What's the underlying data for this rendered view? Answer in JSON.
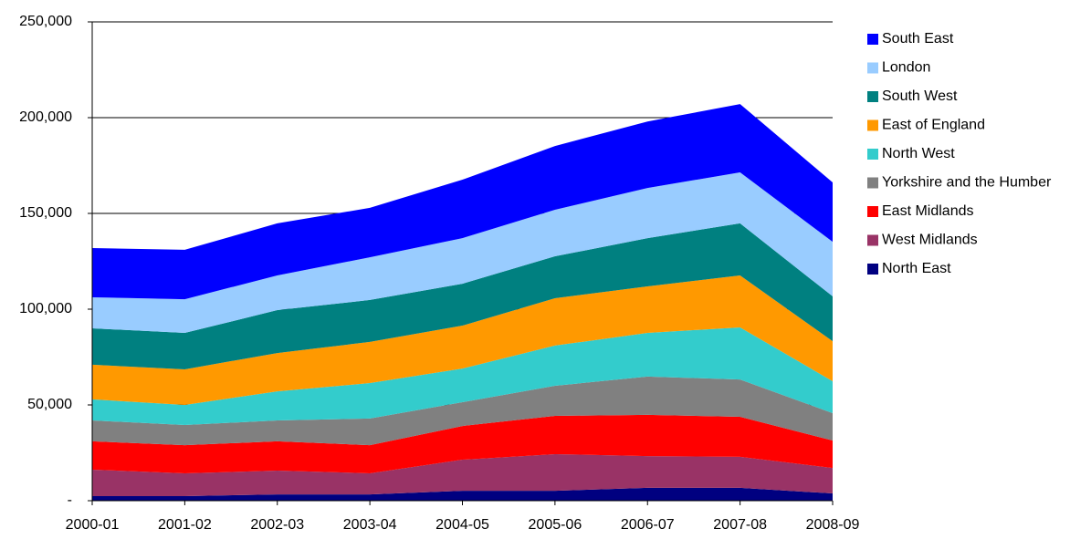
{
  "chart_data": {
    "type": "stacked-area",
    "categories": [
      "2000-01",
      "2001-02",
      "2002-03",
      "2003-04",
      "2004-05",
      "2005-06",
      "2006-07",
      "2007-08",
      "2008-09"
    ],
    "series": [
      {
        "name": "North East",
        "color": "#000080",
        "values": [
          2400,
          2400,
          3300,
          3300,
          5200,
          5200,
          6700,
          6700,
          3800
        ]
      },
      {
        "name": "West Midlands",
        "color": "#993366",
        "values": [
          13800,
          11900,
          12400,
          11000,
          16200,
          19100,
          16600,
          16200,
          13300
        ]
      },
      {
        "name": "East Midlands",
        "color": "#ff0000",
        "values": [
          14800,
          14700,
          15300,
          14700,
          17600,
          20000,
          21500,
          20900,
          14300
        ]
      },
      {
        "name": "Yorkshire and the Humber",
        "color": "#808080",
        "values": [
          10900,
          10500,
          10900,
          13900,
          12400,
          15700,
          20000,
          19500,
          14300
        ]
      },
      {
        "name": "North West",
        "color": "#33cccc",
        "values": [
          11000,
          10500,
          15200,
          18500,
          17600,
          21000,
          22800,
          27200,
          16700
        ]
      },
      {
        "name": "East of England",
        "color": "#ff9900",
        "values": [
          18100,
          18600,
          20000,
          21500,
          22400,
          24700,
          24300,
          27100,
          20900
        ]
      },
      {
        "name": "South West",
        "color": "#008080",
        "values": [
          19000,
          19000,
          22400,
          21900,
          21900,
          21900,
          25200,
          27200,
          23400
        ]
      },
      {
        "name": "London",
        "color": "#99ccff",
        "values": [
          16200,
          17600,
          18100,
          22300,
          23800,
          24300,
          26200,
          26600,
          28500
        ]
      },
      {
        "name": "South East",
        "color": "#0000ff",
        "values": [
          25700,
          25800,
          27200,
          25800,
          30500,
          33300,
          34700,
          35700,
          31000
        ]
      }
    ],
    "ylim": [
      0,
      250000
    ],
    "yticks": [
      {
        "value": 0,
        "label": "-"
      },
      {
        "value": 50000,
        "label": "50,000"
      },
      {
        "value": 100000,
        "label": "100,000"
      },
      {
        "value": 150000,
        "label": "150,000"
      },
      {
        "value": 200000,
        "label": "200,000"
      },
      {
        "value": 250000,
        "label": "250,000"
      }
    ],
    "grid": true,
    "legend": "right"
  }
}
